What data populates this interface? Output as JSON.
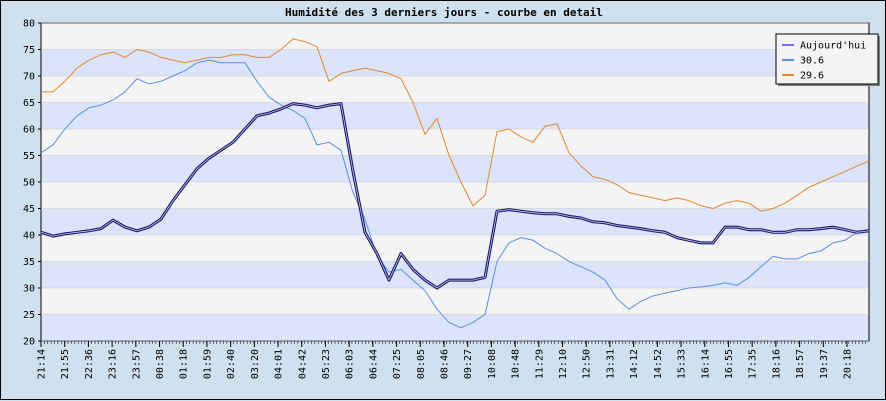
{
  "chart_data": {
    "type": "line",
    "title": "Humidité des 3 derniers jours - courbe en detail",
    "xlabel": "",
    "ylabel": "",
    "ylim": [
      20,
      80
    ],
    "yticks": [
      20,
      25,
      30,
      35,
      40,
      45,
      50,
      55,
      60,
      65,
      70,
      75,
      80
    ],
    "xticks": [
      "21:14",
      "21:55",
      "22:36",
      "23:16",
      "23:57",
      "00:38",
      "01:18",
      "01:59",
      "02:40",
      "03:20",
      "04:01",
      "04:42",
      "05:23",
      "06:03",
      "06:44",
      "07:25",
      "08:05",
      "08:46",
      "09:27",
      "10:08",
      "10:48",
      "11:29",
      "12:10",
      "12:50",
      "13:31",
      "14:12",
      "14:52",
      "15:33",
      "16:14",
      "16:55",
      "17:35",
      "18:16",
      "18:57",
      "19:37",
      "20:18"
    ],
    "grid": true,
    "legend_position": "top-right",
    "series": [
      {
        "name": "Aujourd'hui",
        "color": "#1a1a5e",
        "legend_color": "#7b68ee",
        "values": [
          40.5,
          39.8,
          40.2,
          40.5,
          40.8,
          41.2,
          42.8,
          41.5,
          40.8,
          41.5,
          43,
          46.5,
          49.5,
          52.5,
          54.5,
          56,
          57.5,
          60,
          62.5,
          63,
          63.8,
          64.8,
          64.5,
          64,
          64.5,
          64.8,
          52,
          40.5,
          36.5,
          31.5,
          36.5,
          33.5,
          31.5,
          30,
          31.5,
          31.5,
          31.5,
          32,
          44.5,
          44.8,
          44.5,
          44.2,
          44,
          44,
          43.5,
          43.2,
          42.5,
          42.3,
          41.8,
          41.5,
          41.2,
          40.8,
          40.5,
          39.5,
          39,
          38.5,
          38.5,
          41.5,
          41.5,
          41,
          41,
          40.5,
          40.5,
          41,
          41,
          41.2,
          41.5,
          41,
          40.5,
          40.8
        ]
      },
      {
        "name": "30.6",
        "color": "#5b8fe0",
        "legend_color": "#5b8fe0",
        "values": [
          55.5,
          57,
          60,
          62.5,
          64,
          64.5,
          65.5,
          67,
          69.5,
          68.5,
          69,
          70,
          71,
          72.5,
          73,
          72.5,
          72.5,
          72.5,
          69,
          66,
          64.5,
          63.5,
          62,
          57,
          57.5,
          56,
          48,
          43,
          36,
          33,
          33.5,
          31.5,
          29.5,
          26,
          23.5,
          22.5,
          23.5,
          25,
          35,
          38.5,
          39.5,
          39,
          37.5,
          36.5,
          35,
          34,
          33,
          31.5,
          28,
          26,
          27.5,
          28.5,
          29,
          29.5,
          30,
          30.2,
          30.5,
          31,
          30.5,
          32,
          34,
          36,
          35.5,
          35.5,
          36.5,
          37,
          38.5,
          39,
          40.5,
          40.8
        ]
      },
      {
        "name": "29.6",
        "color": "#e08830",
        "legend_color": "#e08830",
        "values": [
          67,
          67,
          69,
          71.5,
          73,
          74,
          74.5,
          73.5,
          75,
          74.5,
          73.5,
          73,
          72.5,
          73,
          73.5,
          73.5,
          74,
          74,
          73.5,
          73.5,
          75,
          77,
          76.5,
          75.5,
          69,
          70.5,
          71,
          71.5,
          71,
          70.5,
          69.5,
          65,
          59,
          62,
          55,
          50,
          45.5,
          47.5,
          59.5,
          60,
          58.5,
          57.5,
          60.5,
          61,
          55.5,
          53,
          51,
          50.5,
          49.5,
          48,
          47.5,
          47,
          46.5,
          47,
          46.5,
          45.5,
          45,
          46,
          46.5,
          46,
          44.5,
          45,
          46,
          47.5,
          49,
          50,
          51,
          52,
          53,
          54
        ]
      }
    ]
  }
}
